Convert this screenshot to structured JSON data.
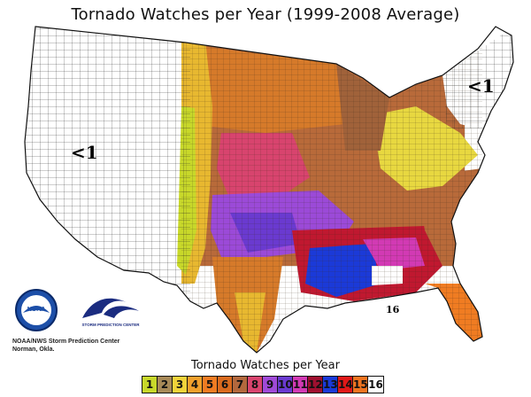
{
  "title": "Tornado Watches per Year (1999-2008 Average)",
  "map_labels": {
    "west_low": "<1",
    "northeast_low": "<1",
    "peak_value": "16"
  },
  "legend": {
    "title": "Tornado Watches per Year",
    "classes": [
      {
        "value": "1",
        "color": "#c8d82a",
        "text_color": "#111"
      },
      {
        "value": "2",
        "color": "#a88a58",
        "text_color": "#111"
      },
      {
        "value": "3",
        "color": "#f2d33a",
        "text_color": "#111"
      },
      {
        "value": "4",
        "color": "#f0a02c",
        "text_color": "#111"
      },
      {
        "value": "5",
        "color": "#f07c22",
        "text_color": "#111"
      },
      {
        "value": "6",
        "color": "#d96a1e",
        "text_color": "#111"
      },
      {
        "value": "7",
        "color": "#b3683d",
        "text_color": "#111"
      },
      {
        "value": "8",
        "color": "#d8446e",
        "text_color": "#111"
      },
      {
        "value": "9",
        "color": "#a04ad8",
        "text_color": "#111"
      },
      {
        "value": "10",
        "color": "#6a3ad0",
        "text_color": "#111"
      },
      {
        "value": "11",
        "color": "#d23ab4",
        "text_color": "#111"
      },
      {
        "value": "12",
        "color": "#a01030",
        "text_color": "#111"
      },
      {
        "value": "13",
        "color": "#1b3ad8",
        "text_color": "#111"
      },
      {
        "value": "14",
        "color": "#e01818",
        "text_color": "#111"
      },
      {
        "value": "15",
        "color": "#f07420",
        "text_color": "#111"
      },
      {
        "value": "16",
        "color": "#ffffff",
        "text_color": "#111"
      }
    ]
  },
  "credit": {
    "line1": "NOAA/NWS Storm Prediction Center",
    "line2": "Norman, Okla."
  },
  "logos": {
    "noaa_text": "NOAA",
    "spc_text": "STORM PREDICTION CENTER"
  }
}
